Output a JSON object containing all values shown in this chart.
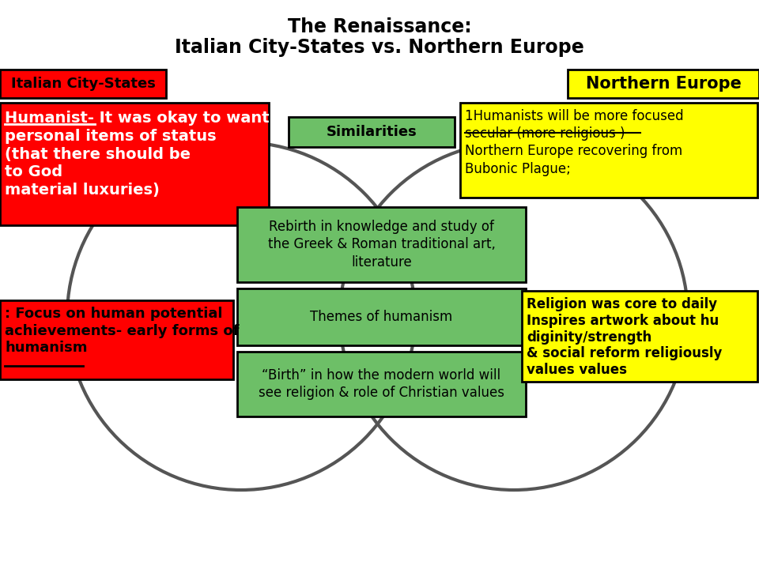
{
  "title_line1": "The Renaissance:",
  "title_line2": "Italian City-States vs. Northern Europe",
  "left_label": "Italian City-States",
  "right_label": "Northern Europe",
  "similarities_label": "Similarities",
  "left_text1": "Humanist- It was okay to want\npersonal items of status\n(that there should be\nto God\nmaterial luxuries)",
  "left_text2": ": Focus on human potential\nachievements- early forms of\nhumanism",
  "center_text1": "Rebirth in knowledge and study of\nthe Greek & Roman traditional art,\nliterature",
  "center_text2": "Themes of humanism",
  "center_text3": "“Birth” in how the modern world will\nsee religion & role of Christian values",
  "right_text1": "1Humanists will be more focused\nsecular (more religious )\nNorthern Europe recovering from\nBubonic Plague;",
  "right_text2": "Religion was core to daily\nInspires artwork about hu\ndiginity/strength\n& social reform religiously\nvalues values",
  "bg_color": "#ffffff",
  "left_label_bg": "#ff0000",
  "right_label_bg": "#ffff00",
  "green_bg": "#6dbf67",
  "left_content_bg": "#ff0000",
  "right_content_bg": "#ffff00"
}
